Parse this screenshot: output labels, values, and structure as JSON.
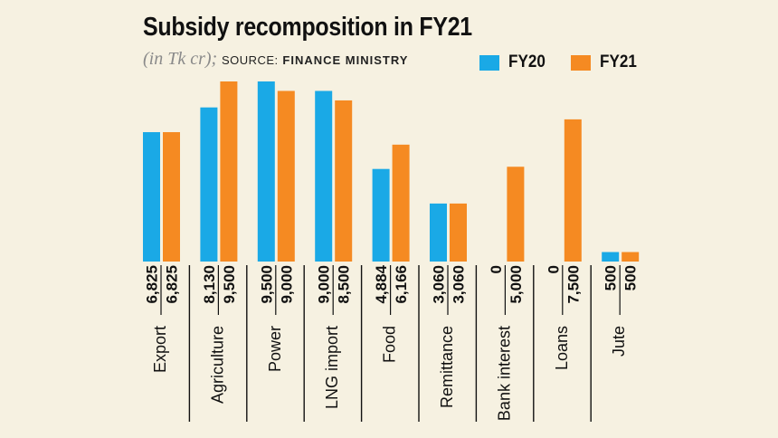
{
  "chart_data": {
    "type": "bar",
    "title": "Subsidy recomposition in FY21",
    "unit": "(in Tk cr);",
    "source_label": "SOURCE:",
    "source_name": "FINANCE MINISTRY",
    "categories": [
      "Export",
      "Agriculture",
      "Power",
      "LNG import",
      "Food",
      "Remittance",
      "Bank interest",
      "Loans",
      "Jute"
    ],
    "series": [
      {
        "name": "FY20",
        "color": "#1aa9e6",
        "values": [
          6825,
          8130,
          9500,
          9000,
          4884,
          3060,
          0,
          0,
          500
        ]
      },
      {
        "name": "FY21",
        "color": "#f58a22",
        "values": [
          6825,
          9500,
          9000,
          8500,
          6166,
          3060,
          5000,
          7500,
          500
        ]
      }
    ],
    "value_labels": [
      [
        "6,825",
        "6,825"
      ],
      [
        "8,130",
        "9,500"
      ],
      [
        "9,500",
        "9,000"
      ],
      [
        "9,000",
        "8,500"
      ],
      [
        "4,884",
        "6,166"
      ],
      [
        "3,060",
        "3,060"
      ],
      [
        "0",
        "5,000"
      ],
      [
        "0",
        "7,500"
      ],
      [
        "500",
        "500"
      ]
    ],
    "ylim": [
      0,
      9500
    ],
    "xlabel": "",
    "ylabel": "",
    "grid": false,
    "legend_position": "top-right"
  }
}
